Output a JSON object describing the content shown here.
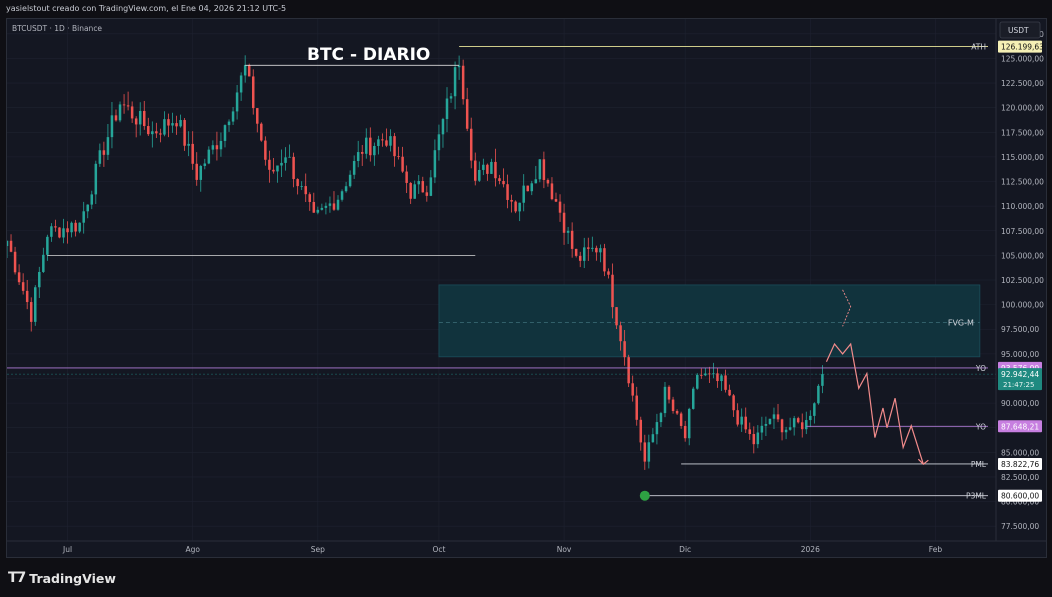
{
  "header": {
    "caption": "yasielstout creado con TradingView.com, el Ene 04, 2026 21:12 UTC-5"
  },
  "chart_data": {
    "type": "candlestick",
    "title": "BTC - DIARIO",
    "symbol_info": "BTCUSDT · 1D · Binance",
    "currency_button": "USDT",
    "y_ticks": [
      127500,
      125000,
      122500,
      120000,
      117500,
      115000,
      112500,
      110000,
      107500,
      105000,
      102500,
      100000,
      97500,
      95000,
      92500,
      90000,
      87500,
      85000,
      82500,
      80000,
      77500
    ],
    "y_tick_labels": [
      "127.500,00",
      "125.000,00",
      "122.500,00",
      "120.000,00",
      "117.500,00",
      "115.000,00",
      "112.500,00",
      "110.000,00",
      "107.500,00",
      "105.000,00",
      "102.500,00",
      "100.000,00",
      "97.500,00",
      "95.000,00",
      "92.500,00",
      "90.000,00",
      "87.500,00",
      "85.000,00",
      "82.500,00",
      "80.000,00",
      "77.500,00"
    ],
    "ylim": [
      76000,
      129000
    ],
    "x_labels": [
      {
        "label": "Jul",
        "date": "2025-07-01"
      },
      {
        "label": "Ago",
        "date": "2025-08-01"
      },
      {
        "label": "Sep",
        "date": "2025-09-01"
      },
      {
        "label": "Oct",
        "date": "2025-10-01"
      },
      {
        "label": "Nov",
        "date": "2025-11-01"
      },
      {
        "label": "Dic",
        "date": "2025-12-01"
      },
      {
        "label": "2026",
        "date": "2026-01-01"
      },
      {
        "label": "Feb",
        "date": "2026-02-01"
      }
    ],
    "xlim": [
      "2025-06-16",
      "2026-02-16"
    ],
    "price_anchors": [
      [
        "2025-06-16",
        106500
      ],
      [
        "2025-06-22",
        99000
      ],
      [
        "2025-06-26",
        107300
      ],
      [
        "2025-07-04",
        108200
      ],
      [
        "2025-07-10",
        116000
      ],
      [
        "2025-07-14",
        120500
      ],
      [
        "2025-07-22",
        117500
      ],
      [
        "2025-07-28",
        119000
      ],
      [
        "2025-08-02",
        113200
      ],
      [
        "2025-08-08",
        117200
      ],
      [
        "2025-08-14",
        124000
      ],
      [
        "2025-08-20",
        113000
      ],
      [
        "2025-08-24",
        115500
      ],
      [
        "2025-08-31",
        108500
      ],
      [
        "2025-09-06",
        111000
      ],
      [
        "2025-09-12",
        115800
      ],
      [
        "2025-09-18",
        117000
      ],
      [
        "2025-09-24",
        111500
      ],
      [
        "2025-09-28",
        112000
      ],
      [
        "2025-10-06",
        125000
      ],
      [
        "2025-10-10",
        112500
      ],
      [
        "2025-10-14",
        114500
      ],
      [
        "2025-10-20",
        110000
      ],
      [
        "2025-10-26",
        114500
      ],
      [
        "2025-10-31",
        109500
      ],
      [
        "2025-11-04",
        104500
      ],
      [
        "2025-11-10",
        106000
      ],
      [
        "2025-11-16",
        95000
      ],
      [
        "2025-11-21",
        84000
      ],
      [
        "2025-11-26",
        91000
      ],
      [
        "2025-12-01",
        86500
      ],
      [
        "2025-12-04",
        93000
      ],
      [
        "2025-12-10",
        92000
      ],
      [
        "2025-12-14",
        88500
      ],
      [
        "2025-12-18",
        86000
      ],
      [
        "2025-12-22",
        88500
      ],
      [
        "2025-12-26",
        87500
      ],
      [
        "2025-12-31",
        88000
      ],
      [
        "2026-01-04",
        92942
      ]
    ],
    "levels": [
      {
        "name": "ATH",
        "price": 126199.63,
        "label": "126.199,63",
        "color": "#e8e79a",
        "start": "2025-10-06"
      },
      {
        "name": "YO",
        "price": 93576.0,
        "label": "93.576,00",
        "color": "#b07cd8",
        "start": "2025-06-16"
      },
      {
        "name": "YO",
        "price": 87648.21,
        "label": "87.648,21",
        "color": "#b07cd8",
        "start": "2025-12-31"
      },
      {
        "name": "PML",
        "price": 83822.76,
        "label": "83.822,76",
        "color": "#d1d4dc",
        "start": "2025-11-30"
      },
      {
        "name": "P3ML",
        "price": 80600.0,
        "label": "80.600,00",
        "color": "#d1d4dc",
        "start": "2025-11-21"
      }
    ],
    "range_lines": [
      {
        "from": "2025-08-14",
        "to": "2025-10-06",
        "price": 124300
      },
      {
        "from": "2025-06-26",
        "to": "2025-10-10",
        "price": 105000
      }
    ],
    "fvg_zone": {
      "name": "FVG-M",
      "from": "2025-10-01",
      "to": "2026-02-12",
      "top": 102000,
      "bottom": 94700,
      "mid": 98200
    },
    "current_price": {
      "price": 92942.44,
      "label": "92.942,44",
      "countdown": "21:47:25"
    },
    "marker": {
      "date": "2025-11-21",
      "price": 80600,
      "color": "#2ea043"
    },
    "projection": [
      [
        "2026-01-05",
        94200
      ],
      [
        "2026-01-07",
        96000
      ],
      [
        "2026-01-09",
        95000
      ],
      [
        "2026-01-11",
        96000
      ],
      [
        "2026-01-13",
        91500
      ],
      [
        "2026-01-15",
        93000
      ],
      [
        "2026-01-17",
        86500
      ],
      [
        "2026-01-19",
        89500
      ],
      [
        "2026-01-20",
        87500
      ],
      [
        "2026-01-22",
        90500
      ],
      [
        "2026-01-24",
        85500
      ],
      [
        "2026-01-26",
        87700
      ],
      [
        "2026-01-29",
        83800
      ]
    ],
    "projection_top": [
      [
        "2026-01-09",
        101500
      ],
      [
        "2026-01-11",
        99800
      ],
      [
        "2026-01-09",
        97800
      ]
    ],
    "colors": {
      "up": "#26a69a",
      "down": "#ef5350",
      "bg": "#141722",
      "grid": "#1e2230",
      "axis_text": "#b2b5be",
      "zone": "#11333d"
    }
  },
  "footer": {
    "brand": "TradingView"
  }
}
